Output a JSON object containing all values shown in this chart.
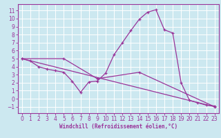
{
  "bg_color": "#cce8f0",
  "line_color": "#993399",
  "grid_color": "#ffffff",
  "xlabel": "Windchill (Refroidissement éolien,°C)",
  "xlim": [
    -0.5,
    23.5
  ],
  "ylim": [
    -1.8,
    11.8
  ],
  "xticks": [
    0,
    1,
    2,
    3,
    4,
    5,
    6,
    7,
    8,
    9,
    10,
    11,
    12,
    13,
    14,
    15,
    16,
    17,
    18,
    19,
    20,
    21,
    22,
    23
  ],
  "yticks": [
    -1,
    0,
    1,
    2,
    3,
    4,
    5,
    6,
    7,
    8,
    9,
    10,
    11
  ],
  "curve1_x": [
    0,
    1,
    2,
    3,
    4,
    5,
    6,
    7,
    8,
    9,
    10,
    11,
    12,
    13,
    14,
    15,
    16,
    17,
    18,
    19,
    20,
    21,
    22,
    23
  ],
  "curve1_y": [
    5.0,
    4.7,
    4.0,
    3.7,
    3.5,
    3.3,
    2.2,
    0.8,
    2.1,
    2.2,
    3.2,
    5.5,
    7.0,
    8.5,
    9.9,
    10.8,
    11.1,
    8.6,
    8.2,
    2.0,
    -0.2,
    -0.5,
    -0.8,
    -0.9
  ],
  "curve2_x": [
    0,
    5,
    9,
    14,
    23
  ],
  "curve2_y": [
    5.0,
    5.0,
    2.5,
    3.3,
    -1.0
  ],
  "curve3_x": [
    0,
    23
  ],
  "curve3_y": [
    5.0,
    -1.0
  ],
  "tick_fontsize": 5.5,
  "xlabel_fontsize": 5.5
}
